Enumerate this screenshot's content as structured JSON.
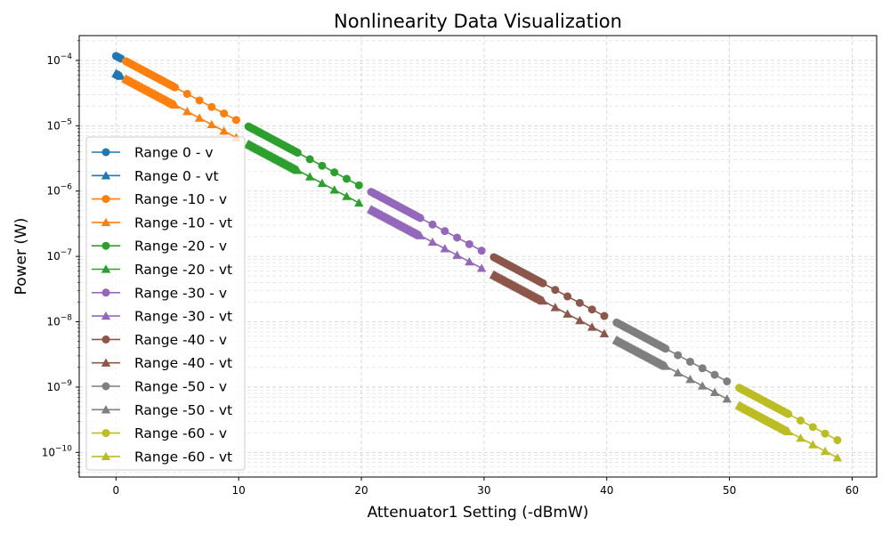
{
  "chart_data": {
    "type": "line",
    "title": "Nonlinearity Data Visualization",
    "xlabel": "Attenuator1 Setting (-dBmW)",
    "ylabel": "Power (W)",
    "xlim": [
      -3,
      62
    ],
    "ylim": [
      4.2e-11,
      0.00024
    ],
    "yscale": "log",
    "grid": true,
    "legend_position": "center-left",
    "x_ticks": [
      0,
      10,
      20,
      30,
      40,
      50,
      60
    ],
    "y_tick_exponents": [
      -10,
      -9,
      -8,
      -7,
      -6,
      -5,
      -4
    ],
    "marker_x_offsets": [
      0,
      0.1,
      0.2,
      0.3,
      0.4,
      0.5,
      0.6,
      0.7,
      0.8,
      0.9,
      1.0,
      1.1,
      1.2,
      1.3,
      1.4,
      1.5,
      1.6,
      1.7,
      1.8,
      1.9,
      2.0,
      2.1,
      2.2,
      2.3,
      2.4,
      2.5,
      2.6,
      2.7,
      2.8,
      2.9,
      3.0,
      3.1,
      3.2,
      3.3,
      3.4,
      3.5,
      3.6,
      3.7,
      3.8,
      3.9,
      4.0,
      5,
      6,
      7,
      8,
      9
    ],
    "series": [
      {
        "name": "Range 0 - v",
        "color": "#1f77b4",
        "marker": "circle",
        "x_start": 0,
        "x_end": 0.4,
        "y_at_x0": 0.000117
      },
      {
        "name": "Range 0 - vt",
        "color": "#1f77b4",
        "marker": "triangle",
        "x_start": 0,
        "x_end": 0.4,
        "y_at_x0": 6.3e-05
      },
      {
        "name": "Range -10 - v",
        "color": "#ff7f0e",
        "marker": "circle",
        "x_start": 0.8,
        "x_end": 10.8,
        "y_at_x0": 0.000117
      },
      {
        "name": "Range -10 - vt",
        "color": "#ff7f0e",
        "marker": "triangle",
        "x_start": 0.8,
        "x_end": 10.8,
        "y_at_x0": 6.3e-05
      },
      {
        "name": "Range -20 - v",
        "color": "#2ca02c",
        "marker": "circle",
        "x_start": 10.8,
        "x_end": 20.8,
        "y_at_x0": 0.000117
      },
      {
        "name": "Range -20 - vt",
        "color": "#2ca02c",
        "marker": "triangle",
        "x_start": 10.8,
        "x_end": 20.8,
        "y_at_x0": 6.3e-05
      },
      {
        "name": "Range -30 - v",
        "color": "#9467bd",
        "marker": "circle",
        "x_start": 20.8,
        "x_end": 30.8,
        "y_at_x0": 0.000117
      },
      {
        "name": "Range -30 - vt",
        "color": "#9467bd",
        "marker": "triangle",
        "x_start": 20.8,
        "x_end": 30.8,
        "y_at_x0": 6.3e-05
      },
      {
        "name": "Range -40 - v",
        "color": "#8c564b",
        "marker": "circle",
        "x_start": 30.8,
        "x_end": 40.8,
        "y_at_x0": 0.000117
      },
      {
        "name": "Range -40 - vt",
        "color": "#8c564b",
        "marker": "triangle",
        "x_start": 30.8,
        "x_end": 40.8,
        "y_at_x0": 6.3e-05
      },
      {
        "name": "Range -50 - v",
        "color": "#7f7f7f",
        "marker": "circle",
        "x_start": 40.8,
        "x_end": 50.8,
        "y_at_x0": 0.000117
      },
      {
        "name": "Range -50 - vt",
        "color": "#7f7f7f",
        "marker": "triangle",
        "x_start": 40.8,
        "x_end": 50.8,
        "y_at_x0": 6.3e-05
      },
      {
        "name": "Range -60 - v",
        "color": "#bcbd22",
        "marker": "circle",
        "x_start": 50.8,
        "x_end": 59.1,
        "y_at_x0": 0.000117
      },
      {
        "name": "Range -60 - vt",
        "color": "#bcbd22",
        "marker": "triangle",
        "x_start": 50.8,
        "x_end": 59.1,
        "y_at_x0": 6.3e-05
      }
    ]
  }
}
